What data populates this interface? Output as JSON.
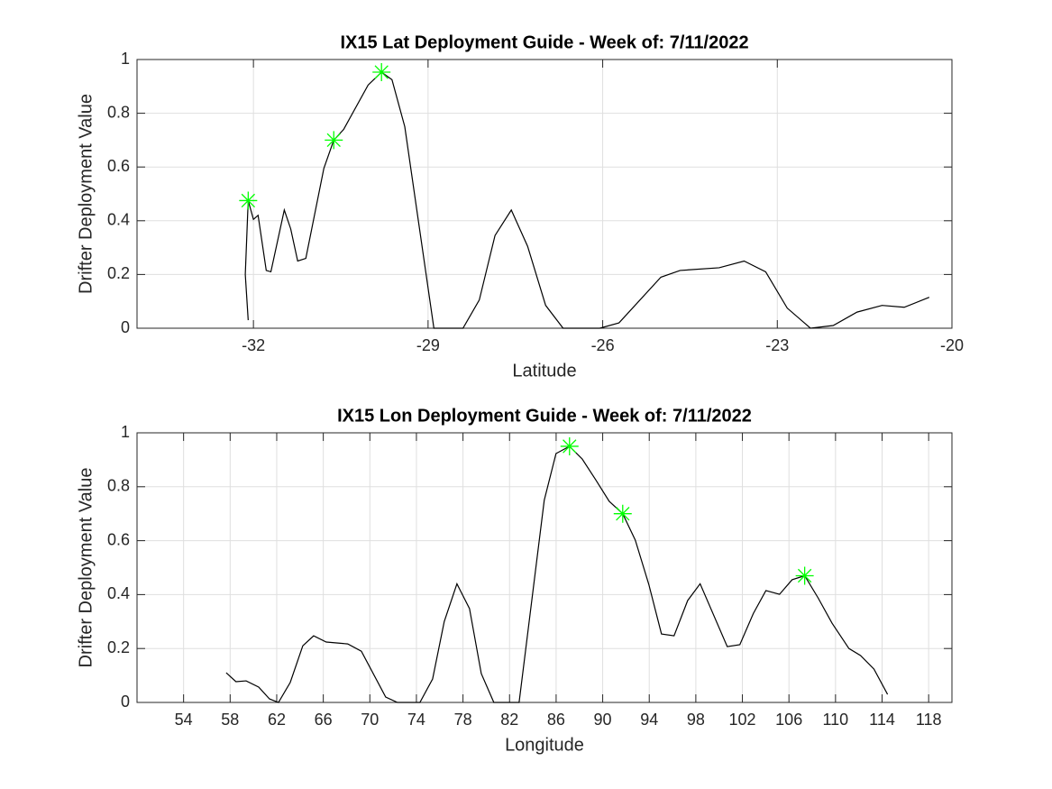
{
  "chart_data": [
    {
      "type": "line",
      "title": "IX15 Lat Deployment Guide - Week of: 7/11/2022",
      "xlabel": "Latitude",
      "ylabel": "Drifter Deployment Value",
      "xlim": [
        -34,
        -20
      ],
      "xticks": [
        -32,
        -29,
        -26,
        -23,
        -20
      ],
      "ylim": [
        0,
        1
      ],
      "yticks": [
        0,
        0.2,
        0.4,
        0.6,
        0.8,
        1
      ],
      "grid": true,
      "series": [
        {
          "type": "line",
          "color": "#000000",
          "x": [
            -32.09,
            -32.14,
            -32.09,
            -32.0,
            -31.92,
            -31.78,
            -31.7,
            -31.47,
            -31.36,
            -31.24,
            -31.1,
            -30.79,
            -30.62,
            -30.45,
            -30.03,
            -29.8,
            -29.62,
            -29.4,
            -28.9,
            -28.4,
            -28.12,
            -27.85,
            -27.57,
            -27.29,
            -26.98,
            -26.68,
            -26.05,
            -25.72,
            -25.0,
            -24.67,
            -24.0,
            -23.57,
            -23.2,
            -22.83,
            -22.43,
            -22.04,
            -21.63,
            -21.2,
            -20.82,
            -20.39
          ],
          "values": [
            0.03,
            0.2,
            0.475,
            0.405,
            0.42,
            0.215,
            0.21,
            0.44,
            0.37,
            0.25,
            0.26,
            0.595,
            0.7,
            0.74,
            0.905,
            0.953,
            0.925,
            0.75,
            0,
            0,
            0.105,
            0.345,
            0.44,
            0.305,
            0.085,
            0,
            0,
            0.02,
            0.19,
            0.215,
            0.225,
            0.25,
            0.21,
            0.075,
            0,
            0.01,
            0.06,
            0.085,
            0.078,
            0.115
          ]
        },
        {
          "type": "scatter",
          "marker": "star",
          "color": "#00ff00",
          "x": [
            -32.09,
            -30.62,
            -29.8
          ],
          "values": [
            0.475,
            0.7,
            0.953
          ]
        }
      ]
    },
    {
      "type": "line",
      "title": "IX15 Lon Deployment Guide - Week of: 7/11/2022",
      "xlabel": "Longitude",
      "ylabel": "Drifter Deployment Value",
      "xlim": [
        50,
        120
      ],
      "xticks": [
        54,
        58,
        62,
        66,
        70,
        74,
        78,
        82,
        86,
        90,
        94,
        98,
        102,
        106,
        110,
        114,
        118
      ],
      "ylim": [
        0,
        1
      ],
      "yticks": [
        0,
        0.2,
        0.4,
        0.6,
        0.8,
        1
      ],
      "grid": true,
      "series": [
        {
          "type": "line",
          "color": "#000000",
          "x": [
            57.66,
            58.5,
            59.37,
            60.45,
            61.38,
            62.15,
            63.16,
            64.24,
            65.17,
            66.25,
            68.1,
            69.27,
            71.36,
            72.37,
            74.3,
            75.39,
            76.39,
            77.48,
            78.56,
            79.57,
            80.65,
            82.82,
            84.98,
            85.99,
            87.15,
            88.24,
            89.4,
            90.56,
            91.72,
            92.8,
            93.96,
            95.05,
            96.13,
            97.3,
            98.37,
            100.7,
            101.78,
            102.94,
            104.02,
            105.19,
            106.27,
            107.35,
            108.5,
            109.7,
            111.15,
            112.15,
            113.3,
            114.47
          ],
          "values": [
            0.11,
            0.077,
            0.08,
            0.057,
            0.013,
            0,
            0.074,
            0.21,
            0.247,
            0.224,
            0.217,
            0.19,
            0.02,
            0,
            0,
            0.087,
            0.3,
            0.44,
            0.348,
            0.107,
            0,
            0,
            0.75,
            0.923,
            0.95,
            0.903,
            0.826,
            0.746,
            0.7,
            0.602,
            0.438,
            0.254,
            0.247,
            0.378,
            0.44,
            0.207,
            0.214,
            0.33,
            0.415,
            0.401,
            0.455,
            0.47,
            0.388,
            0.294,
            0.2,
            0.174,
            0.124,
            0.03
          ]
        },
        {
          "type": "scatter",
          "marker": "star",
          "color": "#00ff00",
          "x": [
            87.15,
            91.72,
            107.35
          ],
          "values": [
            0.95,
            0.7,
            0.47
          ]
        }
      ]
    }
  ]
}
